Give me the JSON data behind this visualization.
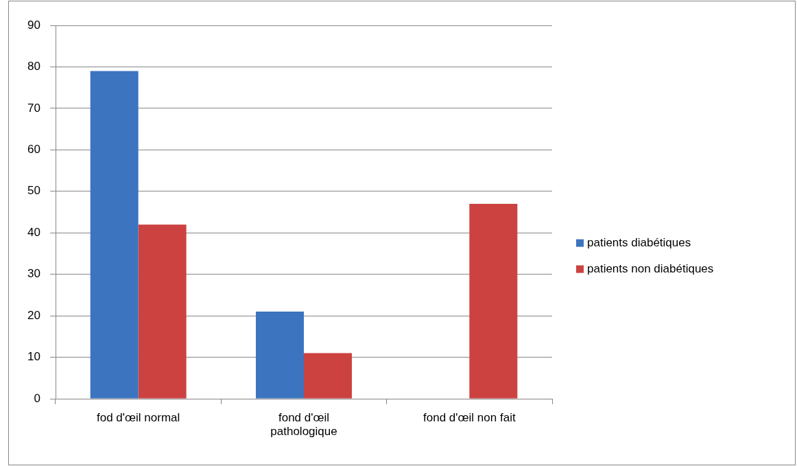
{
  "chart_data": {
    "type": "bar",
    "categories": [
      "fod d'œil normal",
      "fond d'œil pathologique",
      "fond d'œil non fait"
    ],
    "series": [
      {
        "name": "patients diabétiques",
        "color": "#3c74c0",
        "values": [
          79,
          21,
          0
        ]
      },
      {
        "name": "patients non diabétiques",
        "color": "#cc4240",
        "values": [
          42,
          11,
          47
        ]
      }
    ],
    "ylim": [
      0,
      90
    ],
    "yticks": [
      0,
      10,
      20,
      30,
      40,
      50,
      60,
      70,
      80,
      90
    ],
    "grid": "y",
    "legend": "right"
  }
}
